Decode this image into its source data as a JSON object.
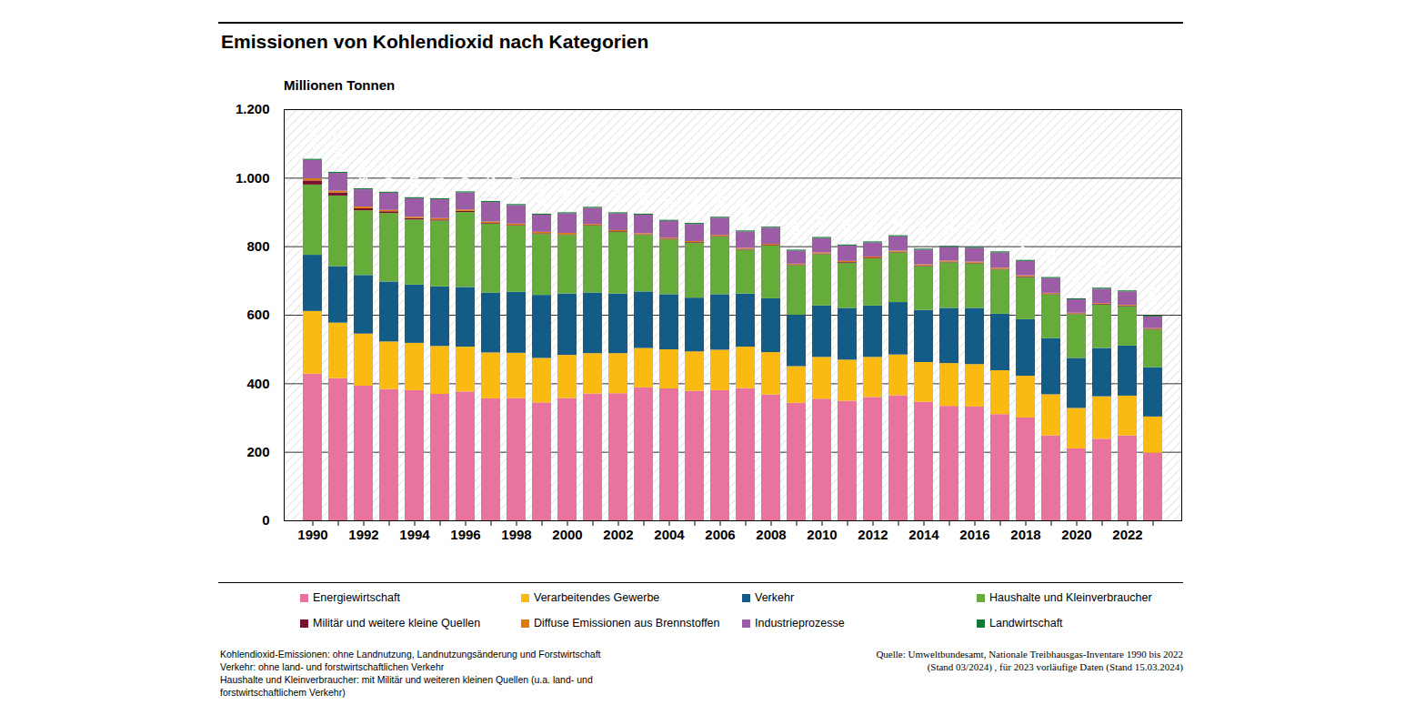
{
  "chart_data": {
    "type": "bar",
    "stacked": true,
    "title": "Emissionen von Kohlendioxid nach Kategorien",
    "ylabel": "Millionen Tonnen",
    "categories": [
      "1990",
      null,
      "1992",
      null,
      "1994",
      null,
      "1996",
      null,
      "1998",
      null,
      "2000",
      null,
      "2002",
      null,
      "2004",
      null,
      "2006",
      null,
      "2008",
      null,
      "2010",
      null,
      "2012",
      null,
      "2014",
      null,
      "2016",
      null,
      "2018",
      null,
      "2020",
      null,
      "2022",
      null
    ],
    "series": [
      {
        "name": "Energiewirtschaft",
        "color": "#e8739e",
        "values": [
          428,
          415,
          393,
          383,
          380,
          369,
          376,
          356,
          357,
          344,
          357,
          370,
          371,
          388,
          385,
          378,
          380,
          386,
          367,
          343,
          355,
          349,
          360,
          365,
          346,
          334,
          332,
          310,
          300,
          248,
          210,
          238,
          248,
          197
        ]
      },
      {
        "name": "Verarbeitendes Gewerbe",
        "color": "#fbba12",
        "values": [
          183,
          162,
          152,
          139,
          138,
          140,
          131,
          134,
          132,
          130,
          126,
          118,
          117,
          115,
          114,
          115,
          118,
          121,
          124,
          107,
          122,
          120,
          117,
          119,
          116,
          125,
          124,
          128,
          122,
          120,
          118,
          124,
          116,
          106
        ]
      },
      {
        "name": "Verkehr",
        "color": "#135c88",
        "values": [
          164,
          165,
          171,
          175,
          170,
          174,
          174,
          175,
          178,
          184,
          179,
          177,
          174,
          165,
          161,
          157,
          162,
          155,
          157,
          150,
          150,
          151,
          150,
          153,
          152,
          161,
          164,
          165,
          165,
          164,
          146,
          141,
          146,
          144
        ]
      },
      {
        "name": "Haushalte und Kleinverbraucher",
        "color": "#66ac3b",
        "values": [
          205,
          206,
          189,
          200,
          190,
          192,
          219,
          201,
          193,
          178,
          171,
          195,
          180,
          165,
          160,
          160,
          168,
          128,
          154,
          145,
          150,
          132,
          138,
          145,
          128,
          133,
          130,
          129,
          123,
          128,
          128,
          127,
          115,
          110
        ]
      },
      {
        "name": "Militär und weitere kleine Quellen",
        "color": "#7b0f30",
        "values": [
          12,
          9,
          6,
          5,
          4,
          3,
          3,
          2,
          2,
          2,
          2,
          2,
          2,
          2,
          2,
          2,
          2,
          2,
          2,
          2,
          2,
          2,
          2,
          2,
          2,
          2,
          2,
          2,
          2,
          2,
          2,
          2,
          2,
          2
        ]
      },
      {
        "name": "Diffuse Emissionen aus Brennstoffen",
        "color": "#de7b08",
        "values": [
          6,
          5,
          5,
          4,
          4,
          4,
          4,
          4,
          4,
          4,
          4,
          3,
          3,
          3,
          3,
          3,
          3,
          3,
          3,
          2,
          3,
          3,
          3,
          3,
          3,
          3,
          3,
          3,
          3,
          2,
          2,
          2,
          2,
          2
        ]
      },
      {
        "name": "Industrieprozesse",
        "color": "#9d5ca6",
        "values": [
          54,
          52,
          50,
          50,
          54,
          55,
          50,
          57,
          54,
          50,
          57,
          47,
          49,
          54,
          49,
          50,
          50,
          48,
          47,
          38,
          42,
          45,
          41,
          42,
          43,
          40,
          40,
          45,
          42,
          43,
          39,
          42,
          39,
          34
        ]
      },
      {
        "name": "Landwirtschaft",
        "color": "#127a37",
        "values": [
          3,
          3,
          3,
          3,
          3,
          3,
          3,
          3,
          3,
          3,
          3,
          3,
          3,
          3,
          3,
          3,
          3,
          3,
          3,
          3,
          3,
          3,
          3,
          3,
          3,
          3,
          3,
          3,
          3,
          3,
          3,
          3,
          3,
          3
        ]
      }
    ],
    "totals": {
      "values": [
        1055,
        1017,
        969,
        959,
        943,
        940,
        960,
        932,
        923,
        895,
        899,
        915,
        899,
        895,
        877,
        868,
        886,
        846,
        857,
        790,
        827,
        805,
        814,
        832,
        793,
        801,
        798,
        785,
        760,
        710,
        648,
        679,
        671,
        598
      ],
      "value_labels": [
        "1.055",
        "1.017",
        "969",
        "959",
        "943",
        "940",
        "960",
        "932",
        "923",
        "895",
        "899",
        "915",
        "899",
        "895",
        "877",
        "868",
        "886",
        "846",
        "857",
        "790",
        "827",
        "805",
        "814",
        "832",
        "793",
        "801",
        "798",
        "785",
        "760",
        "710",
        "648",
        "679",
        "671",
        "598"
      ]
    },
    "ylim": [
      0,
      1200
    ],
    "yticks": [
      0,
      200,
      400,
      600,
      800,
      {
        "value": 1000,
        "label": "1.000"
      },
      {
        "value": 1200,
        "label": "1.200"
      }
    ],
    "grid": true,
    "legend": "bottom",
    "notes": [
      "Kohlendioxid-Emissionen: ohne Landnutzung, Landnutzungsänderung und Forstwirtschaft",
      "Verkehr: ohne land- und forstwirtschaftlichen Verkehr",
      "Haushalte und Kleinverbraucher: mit Militär und weiteren kleinen Quellen (u.a. land- und forstwirtschaftlichem Verkehr)"
    ],
    "source": "Quelle: Umweltbundesamt, Nationale Treibhausgas-Inventare 1990 bis 2022 (Stand 03/2024) , für 2023 vorläufige Daten (Stand 15.03.2024)"
  }
}
